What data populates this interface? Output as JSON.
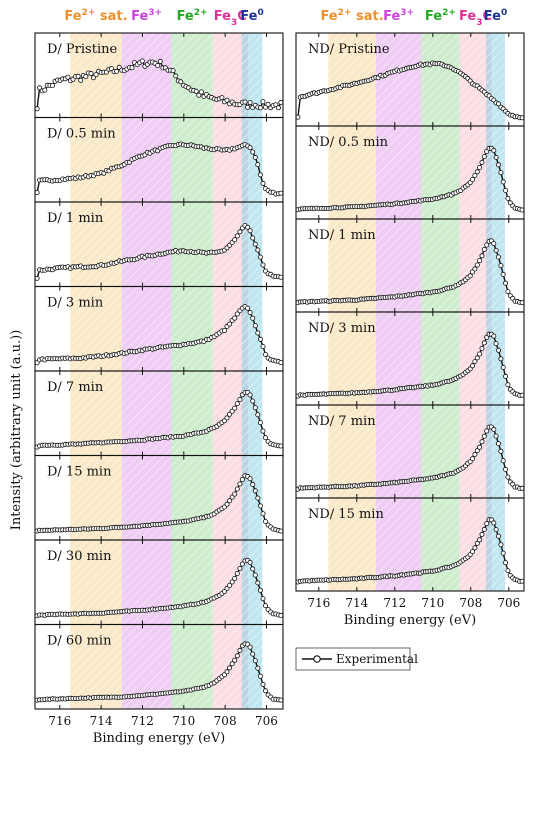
{
  "figure": {
    "y_axis_label": "Intensity (arbitrary unit (a.u.))",
    "x_axis_label": "Binding energy (eV)",
    "legend_label": "Experimental"
  },
  "colors": {
    "fe2sat": "#f0c060",
    "fe3": "#d070e0",
    "fe2": "#70cc70",
    "fe3c": "#f0a0b0",
    "fe0": "#70c8e0",
    "fe2sat_text": "#f0902a",
    "fe3_text": "#cc44dd",
    "fe2_text": "#22aa22",
    "fe3c_text": "#dd3399",
    "fe0_text": "#1a3399"
  },
  "chart_data": {
    "type": "line",
    "x_axis": {
      "label": "Binding energy (eV)",
      "lim": [
        717.2,
        705.2
      ],
      "ticks": [
        716,
        714,
        712,
        710,
        708,
        706
      ],
      "reversed": true
    },
    "y_axis": {
      "label": "Intensity (arbitrary unit (a.u.))"
    },
    "regions": [
      {
        "key": "fe2sat",
        "label_main": "Fe",
        "label_sup": "2+",
        "label_tail": " sat.",
        "range": [
          715.5,
          713.0
        ]
      },
      {
        "key": "fe3",
        "label_main": "Fe",
        "label_sup": "3+",
        "label_tail": "",
        "range": [
          713.0,
          710.6
        ]
      },
      {
        "key": "fe2",
        "label_main": "Fe",
        "label_sup": "2+",
        "label_tail": "",
        "range": [
          710.6,
          708.6
        ]
      },
      {
        "key": "fe3c",
        "label_main": "Fe",
        "label_sub": "3",
        "label_tail": "C",
        "range": [
          708.6,
          706.9
        ]
      },
      {
        "key": "fe0",
        "label_main": "Fe",
        "label_sup": "0",
        "label_tail": "",
        "range": [
          707.2,
          706.2
        ]
      }
    ],
    "columns": [
      {
        "prefix": "D",
        "panels": [
          {
            "label": "D/ Pristine",
            "x": [
              717,
              716,
              715,
              714,
              713,
              712,
              711.5,
              711,
              710.5,
              710,
              709.5,
              709,
              708.5,
              708,
              707.5,
              707,
              706.5,
              706,
              705.5,
              705.2
            ],
            "y": [
              0.3,
              0.45,
              0.5,
              0.55,
              0.62,
              0.7,
              0.72,
              0.68,
              0.55,
              0.4,
              0.3,
              0.22,
              0.18,
              0.15,
              0.12,
              0.1,
              0.1,
              0.09,
              0.09,
              0.09
            ],
            "noise": 0.05
          },
          {
            "label": "D/ 0.5 min",
            "x": [
              717,
              716,
              715,
              714,
              713,
              712,
              711,
              710.5,
              710,
              709.5,
              709,
              708.5,
              708,
              707.5,
              707,
              706.8,
              706.5,
              706.2,
              706,
              705.7,
              705.5,
              705.2
            ],
            "y": [
              0.22,
              0.24,
              0.27,
              0.33,
              0.45,
              0.6,
              0.7,
              0.74,
              0.75,
              0.73,
              0.7,
              0.68,
              0.66,
              0.7,
              0.74,
              0.72,
              0.55,
              0.2,
              0.08,
              0.05,
              0.04,
              0.04
            ],
            "noise": 0.015
          },
          {
            "label": "D/ 1 min",
            "x": [
              717,
              716,
              715,
              714,
              713,
              712,
              711,
              710,
              709,
              708.5,
              708,
              707.5,
              707.2,
              707,
              706.8,
              706.5,
              706.2,
              706,
              705.7,
              705.4,
              705.2
            ],
            "y": [
              0.15,
              0.18,
              0.2,
              0.22,
              0.28,
              0.34,
              0.4,
              0.44,
              0.4,
              0.4,
              0.45,
              0.6,
              0.75,
              0.8,
              0.72,
              0.5,
              0.25,
              0.12,
              0.06,
              0.04,
              0.04
            ],
            "noise": 0.015
          },
          {
            "label": "D/ 3 min",
            "x": [
              717,
              716,
              715,
              714,
              713,
              712,
              711,
              710,
              709,
              708.5,
              708,
              707.5,
              707.2,
              707,
              706.8,
              706.5,
              706.2,
              706,
              705.7,
              705.4,
              705.2
            ],
            "y": [
              0.08,
              0.09,
              0.1,
              0.13,
              0.17,
              0.22,
              0.26,
              0.3,
              0.35,
              0.42,
              0.52,
              0.7,
              0.82,
              0.85,
              0.78,
              0.55,
              0.28,
              0.13,
              0.06,
              0.04,
              0.04
            ],
            "noise": 0.012
          },
          {
            "label": "D/ 7 min",
            "x": [
              717,
              716,
              715,
              714,
              713,
              712,
              711,
              710,
              709,
              708.5,
              708,
              707.5,
              707.2,
              707,
              706.8,
              706.5,
              706.2,
              706,
              705.7,
              705.4,
              705.2
            ],
            "y": [
              0.06,
              0.07,
              0.08,
              0.1,
              0.12,
              0.14,
              0.17,
              0.2,
              0.26,
              0.32,
              0.42,
              0.62,
              0.78,
              0.85,
              0.8,
              0.58,
              0.3,
              0.14,
              0.07,
              0.05,
              0.04
            ],
            "noise": 0.008
          },
          {
            "label": "D/ 15 min",
            "x": [
              717,
              716,
              715,
              714,
              713,
              712,
              711,
              710,
              709,
              708.5,
              708,
              707.5,
              707.2,
              707,
              706.8,
              706.5,
              706.2,
              706,
              705.7,
              705.4,
              705.2
            ],
            "y": [
              0.05,
              0.06,
              0.07,
              0.08,
              0.1,
              0.12,
              0.15,
              0.18,
              0.24,
              0.3,
              0.4,
              0.6,
              0.78,
              0.86,
              0.82,
              0.6,
              0.32,
              0.15,
              0.07,
              0.05,
              0.04
            ],
            "noise": 0.006
          },
          {
            "label": "D/ 30 min",
            "x": [
              717,
              716,
              715,
              714,
              713,
              712,
              711,
              710,
              709,
              708.5,
              708,
              707.5,
              707.2,
              707,
              706.8,
              706.5,
              706.2,
              706,
              705.7,
              705.4,
              705.2
            ],
            "y": [
              0.05,
              0.06,
              0.07,
              0.08,
              0.1,
              0.12,
              0.15,
              0.18,
              0.24,
              0.3,
              0.4,
              0.6,
              0.78,
              0.86,
              0.82,
              0.6,
              0.32,
              0.15,
              0.07,
              0.05,
              0.04
            ],
            "noise": 0.006
          },
          {
            "label": "D/ 60 min",
            "x": [
              717,
              716,
              715,
              714,
              713,
              712,
              711,
              710,
              709,
              708.5,
              708,
              707.5,
              707.2,
              707,
              706.8,
              706.5,
              706.2,
              706,
              705.7,
              705.4,
              705.2
            ],
            "y": [
              0.05,
              0.06,
              0.07,
              0.08,
              0.09,
              0.11,
              0.14,
              0.17,
              0.23,
              0.3,
              0.42,
              0.64,
              0.82,
              0.88,
              0.82,
              0.58,
              0.3,
              0.14,
              0.06,
              0.05,
              0.04
            ],
            "noise": 0.005
          }
        ]
      },
      {
        "prefix": "ND",
        "panels": [
          {
            "label": "ND/ Pristine",
            "x": [
              717,
              716,
              715,
              714,
              713,
              712,
              711,
              710.5,
              710,
              709.5,
              709,
              708.5,
              708,
              707.5,
              707,
              706.5,
              706.2,
              706,
              705.7,
              705.5,
              705.2
            ],
            "y": [
              0.3,
              0.36,
              0.42,
              0.48,
              0.55,
              0.63,
              0.7,
              0.72,
              0.73,
              0.72,
              0.68,
              0.6,
              0.5,
              0.4,
              0.3,
              0.2,
              0.12,
              0.08,
              0.05,
              0.04,
              0.04
            ],
            "noise": 0.012
          },
          {
            "label": "ND/ 0.5 min",
            "x": [
              717,
              716,
              715,
              714,
              713,
              712,
              711,
              710,
              709,
              708.5,
              708,
              707.5,
              707.2,
              707,
              706.8,
              706.5,
              706.2,
              706,
              705.7,
              705.4,
              705.2
            ],
            "y": [
              0.05,
              0.06,
              0.07,
              0.08,
              0.1,
              0.12,
              0.15,
              0.18,
              0.24,
              0.3,
              0.4,
              0.6,
              0.78,
              0.86,
              0.82,
              0.6,
              0.32,
              0.15,
              0.07,
              0.05,
              0.04
            ],
            "noise": 0.006
          },
          {
            "label": "ND/ 1 min",
            "x": [
              717,
              716,
              715,
              714,
              713,
              712,
              711,
              710,
              709,
              708.5,
              708,
              707.5,
              707.2,
              707,
              706.8,
              706.5,
              706.2,
              706,
              705.7,
              705.4,
              705.2
            ],
            "y": [
              0.05,
              0.06,
              0.07,
              0.08,
              0.1,
              0.12,
              0.15,
              0.18,
              0.24,
              0.3,
              0.4,
              0.6,
              0.78,
              0.86,
              0.82,
              0.6,
              0.32,
              0.15,
              0.07,
              0.05,
              0.04
            ],
            "noise": 0.006
          },
          {
            "label": "ND/ 3 min",
            "x": [
              717,
              716,
              715,
              714,
              713,
              712,
              711,
              710,
              709,
              708.5,
              708,
              707.5,
              707.2,
              707,
              706.8,
              706.5,
              706.2,
              706,
              705.7,
              705.4,
              705.2
            ],
            "y": [
              0.05,
              0.06,
              0.07,
              0.08,
              0.1,
              0.12,
              0.15,
              0.18,
              0.24,
              0.3,
              0.4,
              0.6,
              0.78,
              0.86,
              0.82,
              0.6,
              0.32,
              0.15,
              0.07,
              0.05,
              0.04
            ],
            "noise": 0.006
          },
          {
            "label": "ND/ 7 min",
            "x": [
              717,
              716,
              715,
              714,
              713,
              712,
              711,
              710,
              709,
              708.5,
              708,
              707.5,
              707.2,
              707,
              706.8,
              706.5,
              706.2,
              706,
              705.7,
              705.4,
              705.2
            ],
            "y": [
              0.05,
              0.06,
              0.07,
              0.08,
              0.1,
              0.12,
              0.15,
              0.18,
              0.24,
              0.3,
              0.4,
              0.6,
              0.78,
              0.86,
              0.82,
              0.6,
              0.32,
              0.15,
              0.07,
              0.05,
              0.04
            ],
            "noise": 0.006
          },
          {
            "label": "ND/ 15 min",
            "x": [
              717,
              716,
              715,
              714,
              713,
              712,
              711,
              710,
              709,
              708.5,
              708,
              707.5,
              707.2,
              707,
              706.8,
              706.5,
              706.2,
              706,
              705.7,
              705.4,
              705.2
            ],
            "y": [
              0.05,
              0.06,
              0.07,
              0.08,
              0.1,
              0.12,
              0.15,
              0.18,
              0.24,
              0.3,
              0.4,
              0.6,
              0.78,
              0.86,
              0.82,
              0.6,
              0.32,
              0.15,
              0.07,
              0.05,
              0.04
            ],
            "noise": 0.006
          }
        ]
      }
    ]
  }
}
